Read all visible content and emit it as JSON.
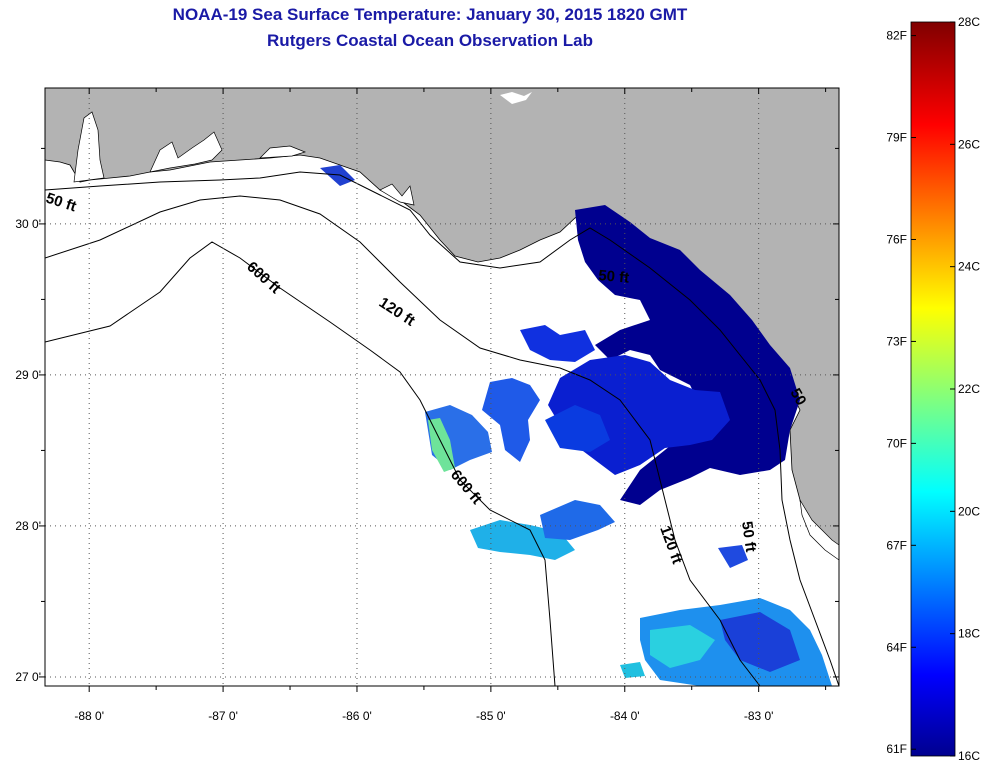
{
  "header": {
    "title": "NOAA-19 Sea Surface Temperature:  January 30, 2015 1820 GMT",
    "subtitle": "Rutgers Coastal Ocean Observation Lab"
  },
  "axes": {
    "lon_labels": [
      "-88 0'",
      "-87 0'",
      "-86 0'",
      "-85 0'",
      "-84 0'",
      "-83 0'"
    ],
    "lon_values": [
      -88,
      -87,
      -86,
      -85,
      -84,
      -83
    ],
    "lat_labels": [
      "30 0'",
      "29 0'",
      "28 0'",
      "27 0'"
    ],
    "lat_values": [
      30,
      29,
      28,
      27
    ],
    "lon_range": [
      -88.33,
      -82.4
    ],
    "lat_range": [
      26.94,
      30.9
    ]
  },
  "contours": {
    "label_50_west": "50 ft",
    "label_600_north": "600 ft",
    "label_120_north": "120 ft",
    "label_50_bigbend": "50 ft",
    "label_50_east": "50",
    "label_600_south": "600 ft",
    "label_120_south": "120 ft",
    "label_50_south": "50 ft"
  },
  "colorbar": {
    "min_c": 16,
    "max_c": 28,
    "celsius_labels": [
      "28C",
      "26C",
      "24C",
      "22C",
      "20C",
      "18C",
      "16C"
    ],
    "fahrenheit_labels": [
      "82F",
      "79F",
      "76F",
      "73F",
      "70F",
      "67F",
      "64F",
      "61F"
    ]
  },
  "colors": {
    "land": "#b3b3b3",
    "water": "#ffffff",
    "title": "#1a1aa6",
    "cold": "#00008f",
    "warm": "#800000"
  }
}
